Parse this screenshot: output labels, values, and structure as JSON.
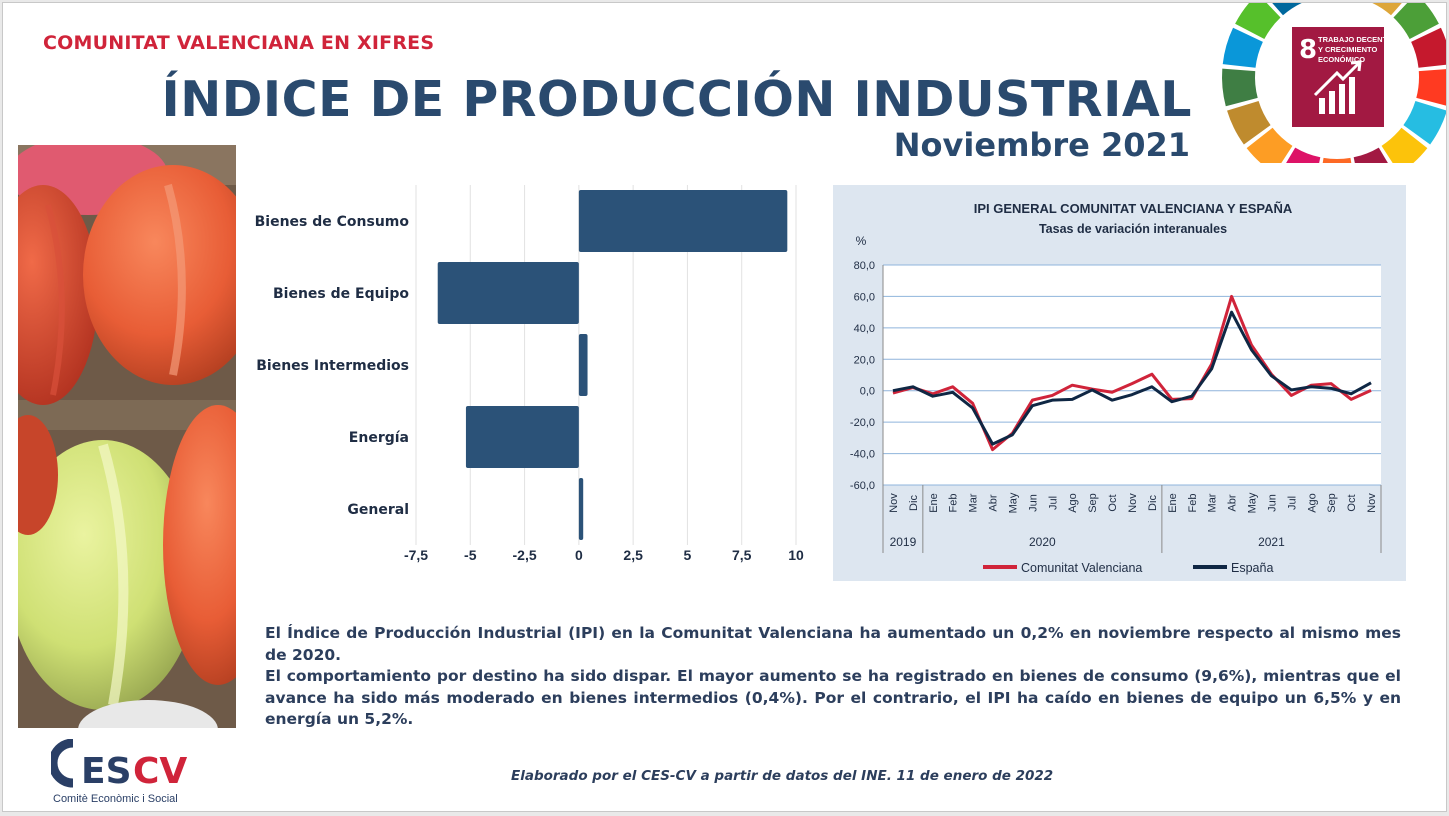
{
  "header": {
    "kicker": "COMUNITAT VALENCIANA EN XIFRES",
    "title": "ÍNDICE DE PRODUCCIÓN INDUSTRIAL",
    "subtitle": "Noviembre 2021"
  },
  "sdg_badge": {
    "number": "8",
    "line1": "TRABAJO DECENTE",
    "line2": "Y CRECIMIENTO",
    "line3": "ECONÓMICO",
    "color": "#a21942"
  },
  "chart_data": [
    {
      "type": "bar",
      "orientation": "horizontal",
      "categories": [
        "Bienes de Consumo",
        "Bienes de Equipo",
        "Bienes Intermedios",
        "Energía",
        "General"
      ],
      "values": [
        9.6,
        -6.5,
        0.4,
        -5.2,
        0.2
      ],
      "xlim": [
        -7.5,
        10
      ],
      "xticks": [
        "-7,5",
        "-5",
        "-2,5",
        "0",
        "2,5",
        "5",
        "7,5",
        "10"
      ],
      "xtick_values": [
        -7.5,
        -5,
        -2.5,
        0,
        2.5,
        5,
        7.5,
        10
      ],
      "color": "#2b5278",
      "grid": true
    },
    {
      "type": "line",
      "title": "IPI GENERAL COMUNITAT VALENCIANA Y ESPAÑA",
      "subtitle": "Tasas de variación interanuales",
      "ylabel": "%",
      "ylim": [
        -60,
        80
      ],
      "yticks": [
        "80,0",
        "60,0",
        "40,0",
        "20,0",
        "0,0",
        "-20,0",
        "-40,0",
        "-60,0"
      ],
      "ytick_values": [
        80,
        60,
        40,
        20,
        0,
        -20,
        -40,
        -60
      ],
      "x": [
        "Nov",
        "Dic",
        "Ene",
        "Feb",
        "Mar",
        "Abr",
        "May",
        "Jun",
        "Jul",
        "Ago",
        "Sep",
        "Oct",
        "Nov",
        "Dic",
        "Ene",
        "Feb",
        "Mar",
        "Abr",
        "May",
        "Jun",
        "Jul",
        "Ago",
        "Sep",
        "Oct",
        "Nov"
      ],
      "years": [
        {
          "label": "2019",
          "start": 0,
          "end": 1
        },
        {
          "label": "2020",
          "start": 2,
          "end": 13
        },
        {
          "label": "2021",
          "start": 14,
          "end": 24
        }
      ],
      "series": [
        {
          "name": "Comunitat Valenciana",
          "color": "#d0243a",
          "values": [
            -1.5,
            2.0,
            -2.0,
            2.5,
            -8.0,
            -37.5,
            -27.0,
            -6.0,
            -3.0,
            3.5,
            1.0,
            -1.0,
            4.5,
            10.5,
            -5.5,
            -5.0,
            17.0,
            60.0,
            29.0,
            10.5,
            -3.0,
            3.5,
            4.5,
            -5.5,
            0.2
          ]
        },
        {
          "name": "España",
          "color": "#0f2744",
          "values": [
            0.0,
            2.5,
            -3.5,
            -1.0,
            -11.0,
            -34.0,
            -28.0,
            -9.5,
            -6.0,
            -5.5,
            0.5,
            -6.0,
            -2.5,
            2.5,
            -7.0,
            -3.5,
            14.0,
            50.0,
            26.0,
            9.5,
            0.5,
            2.5,
            1.5,
            -2.0,
            5.0
          ]
        }
      ],
      "legend_position": "bottom",
      "grid": true
    }
  ],
  "body": {
    "paragraph1": "El Índice de Producción Industrial (IPI) en la Comunitat Valenciana ha aumentado un 0,2% en noviembre respecto al mismo mes de 2020.",
    "paragraph2": "El comportamiento por destino ha sido dispar. El mayor aumento se ha registrado en bienes de consumo (9,6%), mientras que el avance ha sido más moderado en bienes intermedios (0,4%). Por el contrario, el IPI ha caído en bienes de equipo un 6,5% y en energía un 5,2%."
  },
  "logo": {
    "name": "CESCV",
    "tagline": "Comitè Econòmic i Social"
  },
  "footer": {
    "source": "Elaborado por el CES-CV a partir de datos del INE. 11 de enero de 2022"
  }
}
